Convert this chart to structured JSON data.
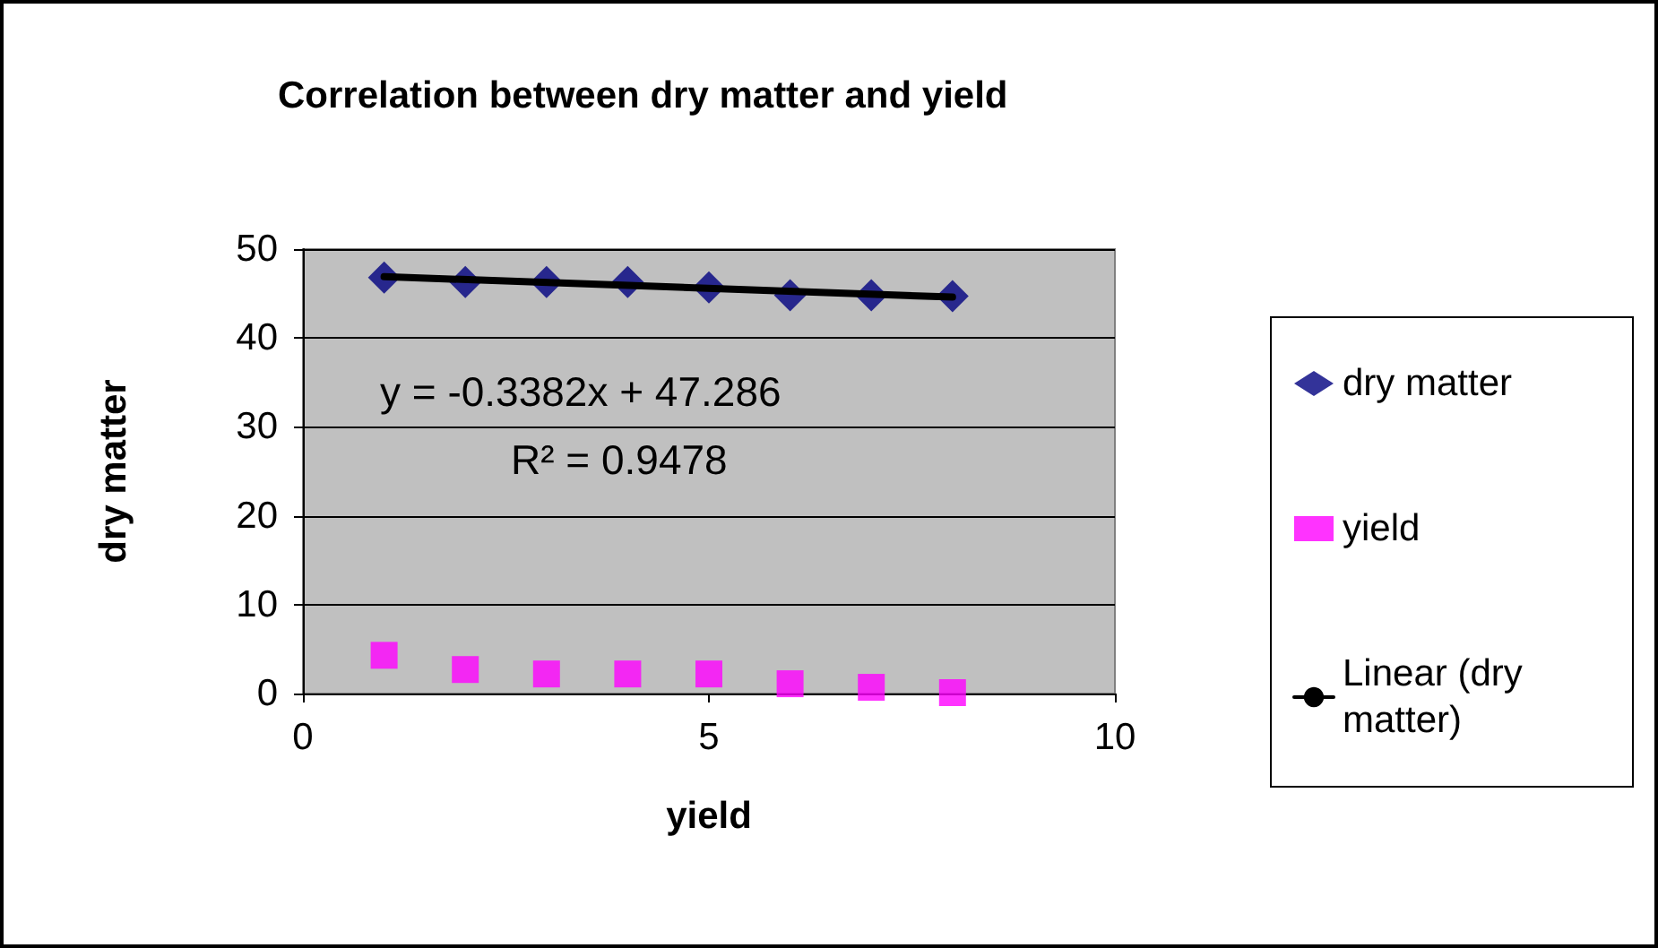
{
  "chart_data": {
    "type": "scatter",
    "title": "Correlation between dry matter and yield",
    "xlabel": "yield",
    "ylabel": "dry matter",
    "x": [
      1,
      2,
      3,
      4,
      5,
      6,
      7,
      8
    ],
    "series": [
      {
        "name": "dry matter",
        "color": "#000080",
        "marker": "diamond",
        "values": [
          46.8,
          46.3,
          46.3,
          46.3,
          45.7,
          44.8,
          44.8,
          44.7
        ]
      },
      {
        "name": "yield",
        "color": "#ff00ff",
        "marker": "square",
        "values": [
          4.3,
          2.7,
          2.2,
          2.2,
          2.2,
          1.1,
          0.7,
          0.1
        ]
      },
      {
        "name": "Linear (dry matter)",
        "type": "line",
        "color": "#000000",
        "marker": "none",
        "x": [
          1,
          8
        ],
        "values": [
          46.9,
          44.6
        ]
      }
    ],
    "annotations": [
      "y = -0.3382x + 47.286",
      "R² = 0.9478"
    ],
    "xlim": [
      0,
      10
    ],
    "xticks": [
      0,
      5,
      10
    ],
    "ylim": [
      0,
      50
    ],
    "yticks": [
      0,
      10,
      20,
      30,
      40,
      50
    ],
    "grid": "y",
    "legend": "right"
  }
}
